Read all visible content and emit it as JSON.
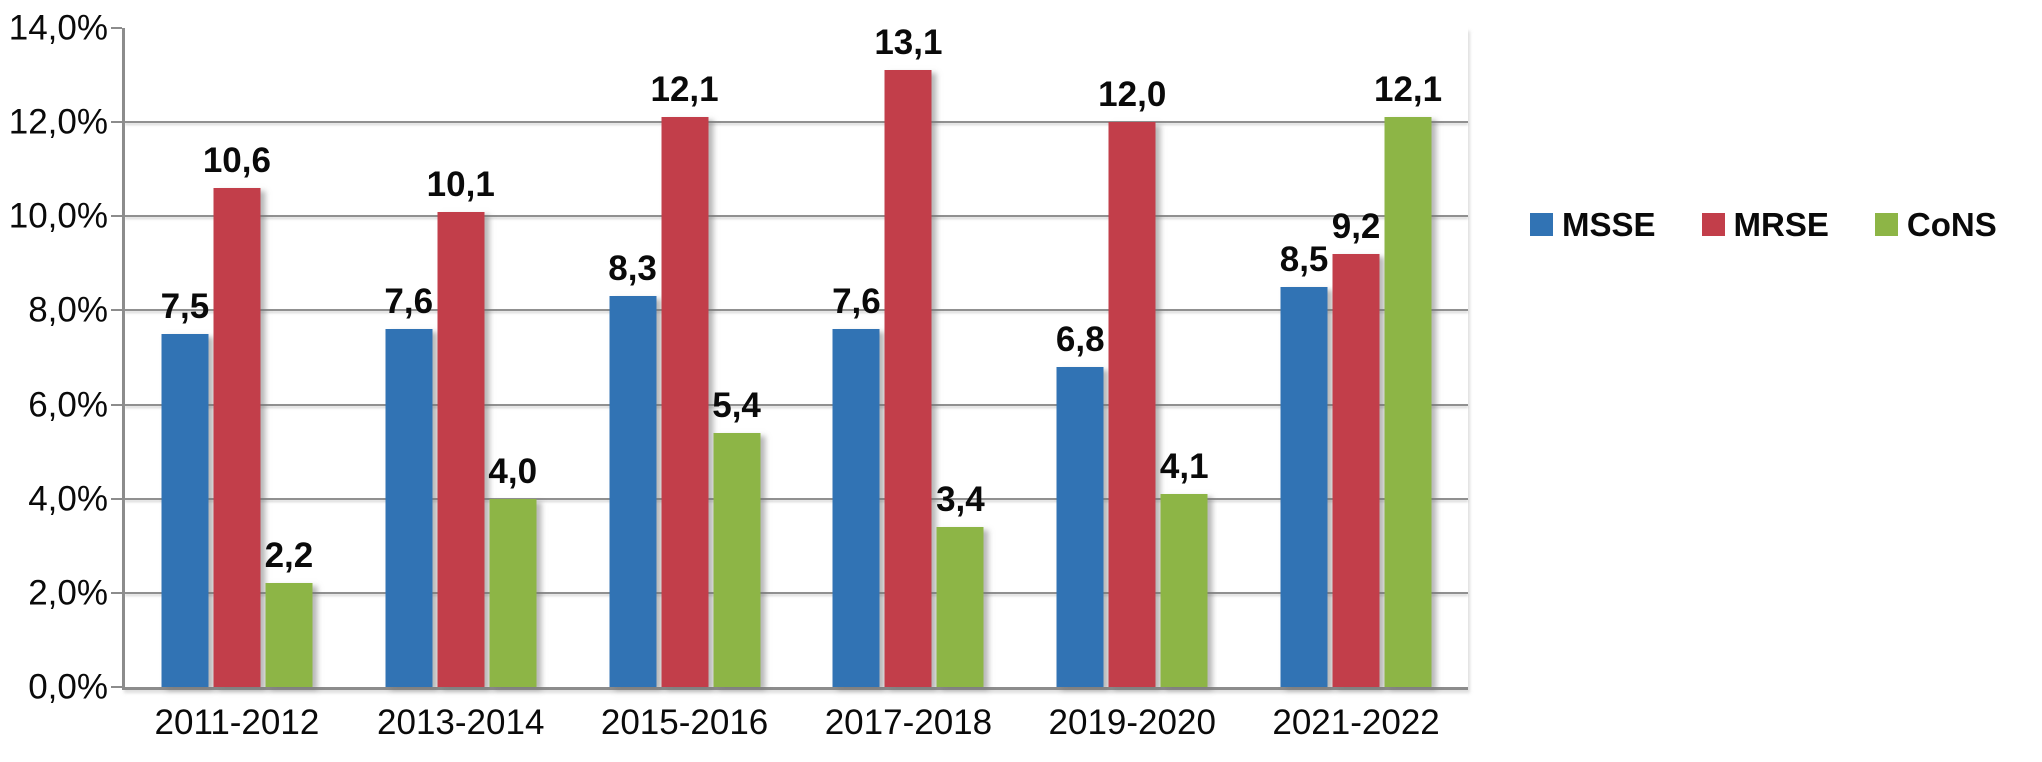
{
  "chart_data": {
    "type": "bar",
    "title": "",
    "xlabel": "",
    "ylabel": "",
    "categories": [
      "2011-2012",
      "2013-2014",
      "2015-2016",
      "2017-2018",
      "2019-2020",
      "2021-2022"
    ],
    "series": [
      {
        "name": "MSSE",
        "color": "#3173B4",
        "values": [
          7.5,
          7.6,
          8.3,
          7.6,
          6.8,
          8.5
        ],
        "labels": [
          "7,5",
          "7,6",
          "8,3",
          "7,6",
          "6,8",
          "8,5"
        ]
      },
      {
        "name": "MRSE",
        "color": "#C23E4A",
        "values": [
          10.6,
          10.1,
          12.1,
          13.1,
          12.0,
          9.2
        ],
        "labels": [
          "10,6",
          "10,1",
          "12,1",
          "13,1",
          "12,0",
          "9,2"
        ]
      },
      {
        "name": "CoNS",
        "color": "#8DB546",
        "values": [
          2.2,
          4.0,
          5.4,
          3.4,
          4.1,
          12.1
        ],
        "labels": [
          "2,2",
          "4,0",
          "5,4",
          "3,4",
          "4,1",
          "12,1"
        ]
      }
    ],
    "ylim": [
      0,
      14
    ],
    "ytick_step": 2,
    "ytick_labels": [
      "0,0%",
      "2,0%",
      "4,0%",
      "6,0%",
      "8,0%",
      "10,0%",
      "12,0%",
      "14,0%"
    ],
    "gridline_values": [
      2,
      4,
      6,
      8,
      10,
      12
    ],
    "tick_values": [
      0,
      2,
      4,
      6,
      8,
      10,
      12,
      14
    ],
    "grid": true,
    "legend_position": "right",
    "axis_color": "#8C8C8C",
    "gridline_color": "#909090",
    "text_color": "#0a0a0a"
  }
}
